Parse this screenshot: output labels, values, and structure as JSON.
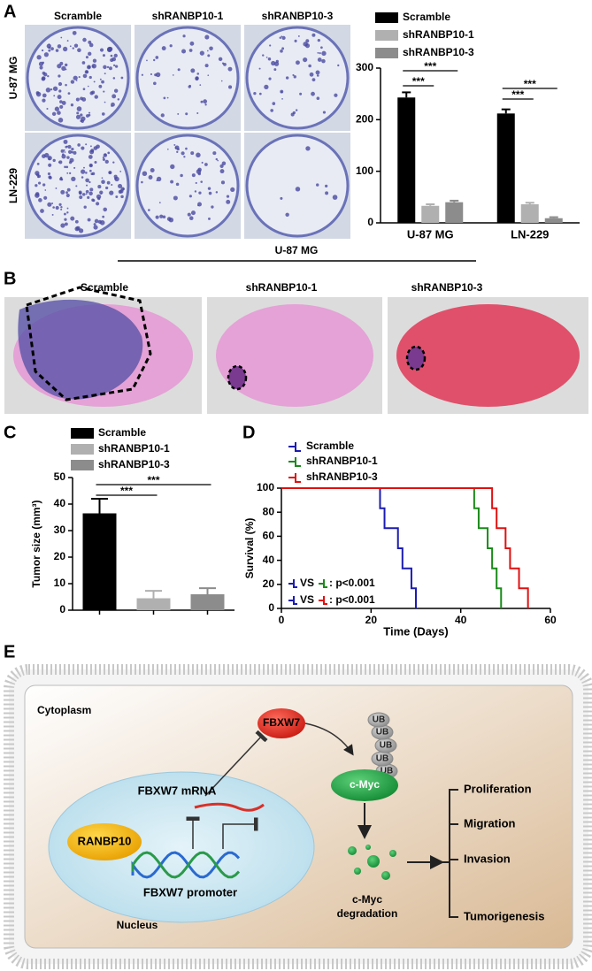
{
  "panel_labels": [
    "A",
    "B",
    "C",
    "D",
    "E"
  ],
  "figure_a": {
    "columns": [
      "Scramble",
      "shRANBP10-1",
      "shRANBP10-3"
    ],
    "rows": [
      "U-87 MG",
      "LN-229"
    ]
  },
  "figure_b": {
    "title": "U-87 MG",
    "columns": [
      "Scramble",
      "shRANBP10-1",
      "shRANBP10-3"
    ]
  },
  "chart_data": [
    {
      "type": "bar",
      "categories": [
        "U-87 MG",
        "LN-229"
      ],
      "series": [
        {
          "name": "Scramble",
          "color": "#000000",
          "values": [
            243,
            212
          ],
          "errors": [
            10,
            8
          ]
        },
        {
          "name": "shRANBP10-1",
          "color": "#b0b0b0",
          "values": [
            33,
            36
          ],
          "errors": [
            3,
            3
          ]
        },
        {
          "name": "shRANBP10-3",
          "color": "#8c8c8c",
          "values": [
            40,
            9
          ],
          "errors": [
            3,
            2
          ]
        }
      ],
      "ylim": [
        0,
        300
      ],
      "yticks": [
        0,
        100,
        200,
        300
      ],
      "significance": [
        "***",
        "***",
        "***",
        "***"
      ]
    },
    {
      "type": "bar",
      "categories": [
        null
      ],
      "ylabel": "Tumor size (mm³)",
      "series": [
        {
          "name": "Scramble",
          "color": "#000000",
          "values": [
            36.5
          ],
          "errors": [
            5.5
          ]
        },
        {
          "name": "shRANBP10-1",
          "color": "#b0b0b0",
          "values": [
            4.5
          ],
          "errors": [
            2.8
          ]
        },
        {
          "name": "shRANBP10-3",
          "color": "#8c8c8c",
          "values": [
            6
          ],
          "errors": [
            2.3
          ]
        }
      ],
      "ylim": [
        0,
        50
      ],
      "yticks": [
        0,
        10,
        20,
        30,
        40,
        50
      ],
      "significance": [
        "***",
        "***"
      ]
    },
    {
      "type": "line",
      "xlabel": "Time (Days)",
      "ylabel": "Survival (%)",
      "series": [
        {
          "name": "Scramble",
          "color": "#1c1cb0",
          "x": [
            0,
            22,
            23,
            26,
            27,
            29,
            30
          ],
          "values": [
            100,
            83.3,
            66.7,
            50,
            33.3,
            16.7,
            0
          ]
        },
        {
          "name": "shRANBP10-1",
          "color": "#1a8a1a",
          "x": [
            0,
            43,
            44,
            46,
            47,
            48,
            49
          ],
          "values": [
            100,
            83.3,
            66.7,
            50,
            33.3,
            16.7,
            0
          ]
        },
        {
          "name": "shRANBP10-3",
          "color": "#e01010",
          "x": [
            0,
            47,
            48,
            50,
            51,
            53,
            55
          ],
          "values": [
            100,
            83.3,
            66.7,
            50,
            33.3,
            16.7,
            0
          ]
        }
      ],
      "xlim": [
        0,
        60
      ],
      "xticks": [
        0,
        20,
        40,
        60
      ],
      "ylim": [
        0,
        100
      ],
      "yticks": [
        0,
        20,
        40,
        60,
        80,
        100
      ],
      "annotations": [
        "VS",
        ": p<0.001",
        "VS",
        ": p<0.001"
      ]
    }
  ],
  "diagram": {
    "cytoplasm": "Cytoplasm",
    "fbxw7": "FBXW7",
    "ub": [
      "UB",
      "UB",
      "UB",
      "UB",
      "UB"
    ],
    "mrna": "FBXW7 mRNA",
    "cmyc": "c-Myc",
    "ranbp10": "RANBP10",
    "promoter": "FBXW7 promoter",
    "nucleus": "Nucleus",
    "degradation": [
      "c-Myc",
      "degradation"
    ],
    "outcomes": [
      "Proliferation",
      "Migration",
      "Invasion",
      "Tumorigenesis"
    ]
  }
}
